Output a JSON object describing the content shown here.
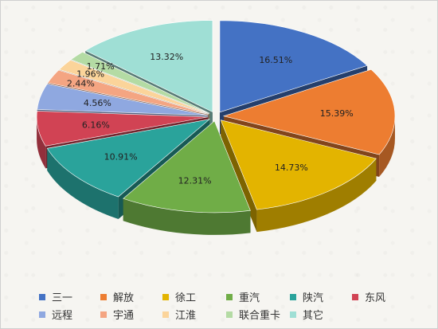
{
  "chart_data": {
    "type": "pie",
    "categories": [
      "三一",
      "解放",
      "徐工",
      "重汽",
      "陕汽",
      "东风",
      "远程",
      "宇通",
      "江淮",
      "联合重卡",
      "其它"
    ],
    "values": [
      16.51,
      15.39,
      14.73,
      12.31,
      10.91,
      6.16,
      4.56,
      2.44,
      1.96,
      1.71,
      13.32
    ],
    "labels": [
      "16.51%",
      "15.39%",
      "14.73%",
      "12.31%",
      "10.91%",
      "6.16%",
      "4.56%",
      "2.44%",
      "1.96%",
      "1.71%",
      "13.32%"
    ],
    "colors": [
      "#4472c4",
      "#ed7d31",
      "#e3b400",
      "#70ad47",
      "#2aa39b",
      "#d14354",
      "#8fa8e0",
      "#f4a582",
      "#fbd49a",
      "#b4dba4",
      "#9fdfd5"
    ],
    "legend_position": "bottom"
  }
}
